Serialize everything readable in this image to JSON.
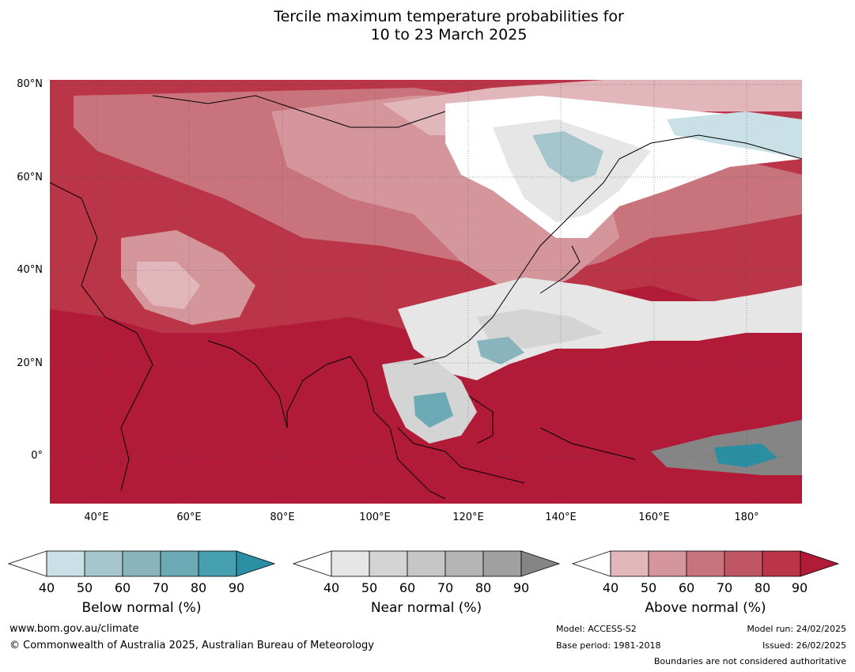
{
  "title": {
    "line1": "Tercile maximum temperature probabilities for",
    "line2": "10 to 23 March 2025"
  },
  "map": {
    "lat_ticks": [
      "80°N",
      "60°N",
      "40°N",
      "20°N",
      "0°"
    ],
    "lon_ticks": [
      "40°E",
      "60°E",
      "80°E",
      "100°E",
      "120°E",
      "140°E",
      "160°E",
      "180°"
    ],
    "colors": {
      "above": [
        "#e2b7bb",
        "#d4959b",
        "#c9747c",
        "#c05663",
        "#b93547",
        "#b11b37"
      ],
      "near": [
        "#e6e6e6",
        "#d4d4d4",
        "#c6c6c6",
        "#b4b4b4",
        "#a0a0a0",
        "#858585"
      ],
      "below": [
        "#c9e1e6",
        "#a5c6cc",
        "#89b3bd",
        "#6ba9b5",
        "#47a0b0",
        "#2a8fa2"
      ],
      "coast": "#000000",
      "borders": "#808080"
    }
  },
  "legend": {
    "tick_labels": [
      "40",
      "50",
      "60",
      "70",
      "80",
      "90"
    ],
    "below_title": "Below normal (%)",
    "near_title": "Near normal (%)",
    "above_title": "Above normal (%)"
  },
  "footer": {
    "website": "www.bom.gov.au/climate",
    "copyright": "© Commonwealth of Australia 2025, Australian Bureau of Meteorology",
    "model": "Model: ACCESS-S2",
    "base_period": "Base period: 1981-2018",
    "model_run": "Model run: 24/02/2025",
    "issued": "Issued: 26/02/2025",
    "disclaimer": "Boundaries are not considered authoritative"
  }
}
